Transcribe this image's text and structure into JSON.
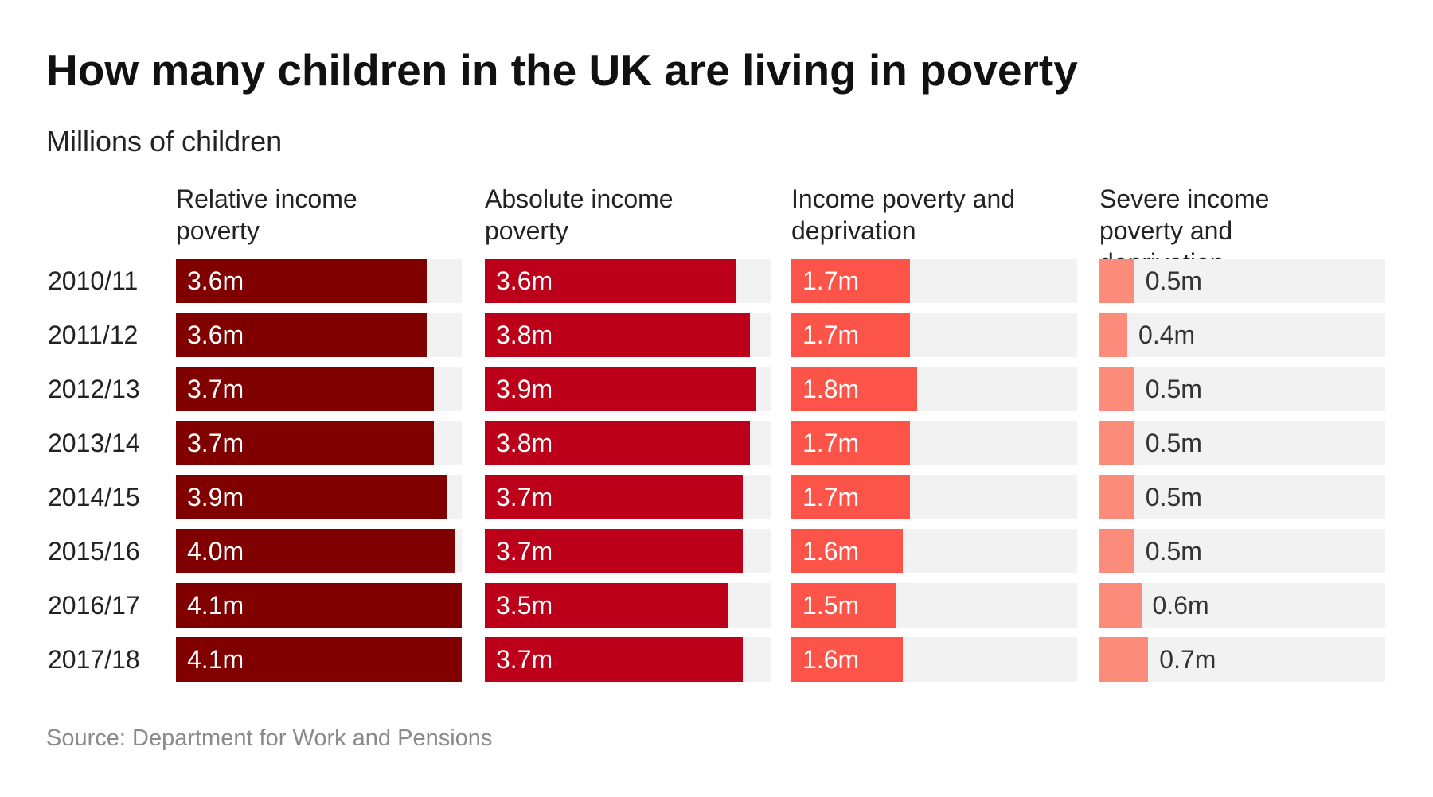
{
  "chart_data": {
    "type": "bar",
    "title": "How many children in the UK are living in poverty",
    "subtitle": "Millions of children",
    "source": "Source: Department for Work and Pensions",
    "categories": [
      "2010/11",
      "2011/12",
      "2012/13",
      "2013/14",
      "2014/15",
      "2015/16",
      "2016/17",
      "2017/18"
    ],
    "xlim": [
      0,
      4.1
    ],
    "track_color": "#f2f2f2",
    "series": [
      {
        "name": "Relative income poverty",
        "color": "#800000",
        "values": [
          3.6,
          3.6,
          3.7,
          3.7,
          3.9,
          4.0,
          4.1,
          4.1
        ],
        "value_labels": [
          "3.6m",
          "3.6m",
          "3.7m",
          "3.7m",
          "3.9m",
          "4.0m",
          "4.1m",
          "4.1m"
        ]
      },
      {
        "name": "Absolute income poverty",
        "color": "#bd0019",
        "values": [
          3.6,
          3.8,
          3.9,
          3.8,
          3.7,
          3.7,
          3.5,
          3.7
        ],
        "value_labels": [
          "3.6m",
          "3.8m",
          "3.9m",
          "3.8m",
          "3.7m",
          "3.7m",
          "3.5m",
          "3.7m"
        ]
      },
      {
        "name": "Income poverty and deprivation",
        "color": "#fc5448",
        "values": [
          1.7,
          1.7,
          1.8,
          1.7,
          1.7,
          1.6,
          1.5,
          1.6
        ],
        "value_labels": [
          "1.7m",
          "1.7m",
          "1.8m",
          "1.7m",
          "1.7m",
          "1.6m",
          "1.5m",
          "1.6m"
        ]
      },
      {
        "name": "Severe income poverty and deprivation",
        "color": "#fb8c7b",
        "values": [
          0.5,
          0.4,
          0.5,
          0.5,
          0.5,
          0.5,
          0.6,
          0.7
        ],
        "value_labels": [
          "0.5m",
          "0.4m",
          "0.5m",
          "0.5m",
          "0.5m",
          "0.5m",
          "0.6m",
          "0.7m"
        ]
      }
    ]
  }
}
